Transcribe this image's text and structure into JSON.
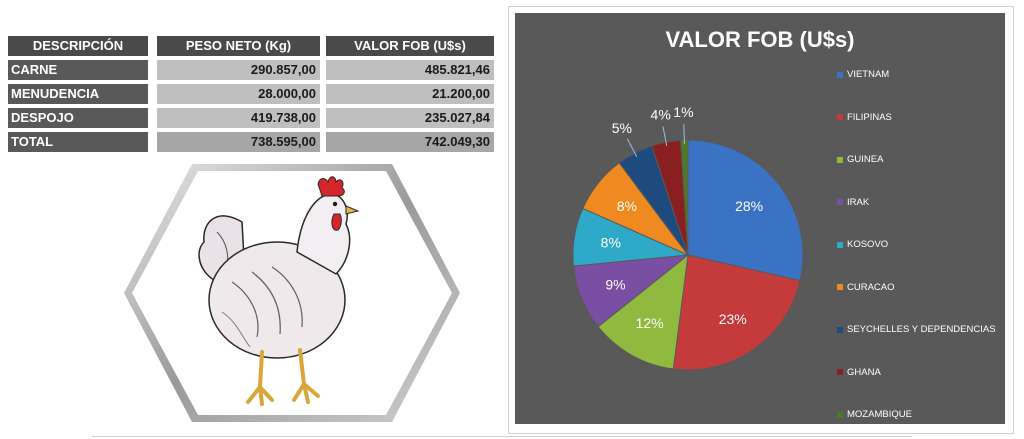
{
  "table": {
    "headers": [
      "DESCRIPCIÓN",
      "PESO NETO (Kg)",
      "VALOR FOB (U$s)"
    ],
    "rows": [
      {
        "desc": "CARNE",
        "peso": "290.857,00",
        "valor": "485.821,46"
      },
      {
        "desc": "MENUDENCIA",
        "peso": "28.000,00",
        "valor": "21.200,00"
      },
      {
        "desc": "DESPOJO",
        "peso": "419.738,00",
        "valor": "235.027,84"
      }
    ],
    "total": {
      "desc": "TOTAL",
      "peso": "738.595,00",
      "valor": "742.049,30"
    }
  },
  "illustration": {
    "icon": "hen-icon"
  },
  "chart_data": {
    "type": "pie",
    "title": "VALOR FOB (U$s)",
    "legend_position": "right",
    "categories": [
      "VIETNAM",
      "FILIPINAS",
      "GUINEA",
      "IRAK",
      "KOSOVO",
      "CURACAO",
      "SEYCHELLES Y DEPENDENCIAS",
      "GHANA",
      "MOZAMBIQUE"
    ],
    "values": [
      28,
      23,
      12,
      9,
      8,
      8,
      5,
      4,
      1
    ],
    "labels": [
      "28%",
      "23%",
      "12%",
      "9%",
      "8%",
      "8%",
      "5%",
      "4%",
      "1%"
    ],
    "colors": [
      "#3b73c4",
      "#c53b3b",
      "#8fba3f",
      "#7a4fa3",
      "#2fa9c8",
      "#ef8a20",
      "#1f4a7d",
      "#8a1f1f",
      "#4f7a25"
    ]
  }
}
